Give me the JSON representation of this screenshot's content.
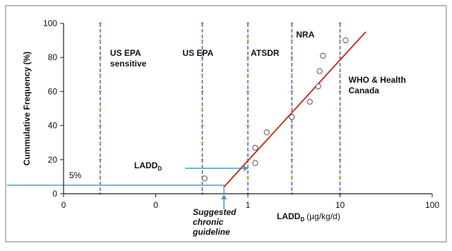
{
  "chart_data": {
    "type": "scatter",
    "title": "",
    "xlabel": "LADD",
    "xlabel_sub": "D",
    "xlabel_unit": "(µg/kg/d)",
    "ylabel": "Cummulative Frequency (%)",
    "x_scale": "log",
    "xlim": [
      0.01,
      100
    ],
    "ylim": [
      0,
      100
    ],
    "x_ticks": [
      {
        "value": 0.01,
        "label": "0"
      },
      {
        "value": 0.1,
        "label": "0"
      },
      {
        "value": 1,
        "label": "1"
      },
      {
        "value": 10,
        "label": "10"
      },
      {
        "value": 100,
        "label": "100"
      }
    ],
    "y_ticks": [
      0,
      20,
      40,
      60,
      80,
      100
    ],
    "grid": false,
    "series": [
      {
        "marker": "open-circle",
        "points": [
          {
            "x": 0.34,
            "y": 9
          },
          {
            "x": 1.2,
            "y": 18
          },
          {
            "x": 1.2,
            "y": 27
          },
          {
            "x": 1.6,
            "y": 36
          },
          {
            "x": 3.0,
            "y": 45
          },
          {
            "x": 4.7,
            "y": 54
          },
          {
            "x": 5.8,
            "y": 63
          },
          {
            "x": 6.0,
            "y": 72
          },
          {
            "x": 6.5,
            "y": 81
          },
          {
            "x": 11.5,
            "y": 90
          }
        ]
      }
    ],
    "fit_line": {
      "color": "#c0392b",
      "points": [
        {
          "x": 0.55,
          "y": 4
        },
        {
          "x": 19,
          "y": 95
        }
      ]
    },
    "guidelines": [
      {
        "x": 0.025,
        "label": "US EPA\nsensitive",
        "color": "#3a5fb0"
      },
      {
        "x": 0.32,
        "label": "US EPA",
        "color": "#3a5fb0"
      },
      {
        "x": 1,
        "label": "ATSDR",
        "color": "#3a5fb0"
      },
      {
        "x": 3,
        "label": "NRA",
        "color": "#3a5fb0"
      },
      {
        "x": 10,
        "label": "WHO & Health\nCanada",
        "color": "#3a5fb0"
      }
    ],
    "reference_line": {
      "y": 5,
      "to_x": 0.55,
      "color": "#5aa9c4"
    },
    "annotations": {
      "five_percent": "5%",
      "ladd_label": "LADD",
      "ladd_sub": "D",
      "suggested": [
        "Suggested",
        "chronic",
        "guideline"
      ]
    },
    "colors": {
      "axis": "#222222",
      "fit": "#c0392b",
      "guideline": "#3a5fb0",
      "reference": "#5aa9c4",
      "arrow": "#4a9cc4",
      "point": "#555555",
      "frame": "#777777"
    }
  }
}
